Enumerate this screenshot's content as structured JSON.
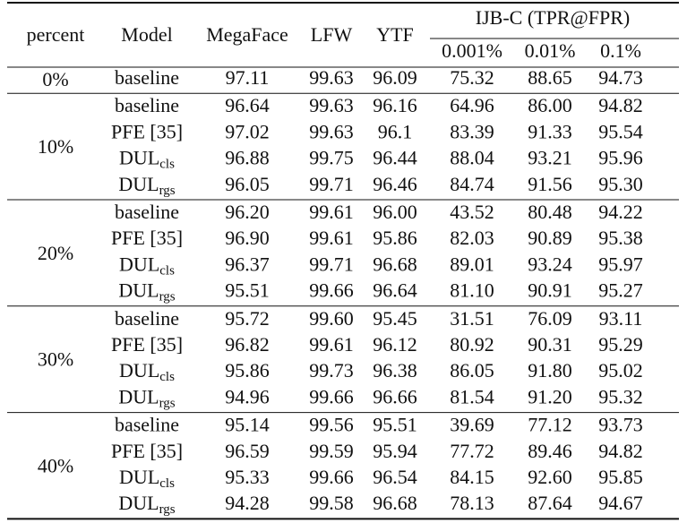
{
  "header": {
    "percent": "percent",
    "model": "Model",
    "columns": [
      "MegaFace",
      "LFW",
      "YTF"
    ],
    "ijbc": "IJB-C (TPR@FPR)",
    "fpr": [
      "0.001%",
      "0.01%",
      "0.1%"
    ]
  },
  "groups": [
    {
      "percent": "0%",
      "rows": [
        {
          "model": "baseline",
          "values": [
            "97.11",
            "99.63",
            "96.09",
            "75.32",
            "88.65",
            "94.73"
          ]
        }
      ]
    },
    {
      "percent": "10%",
      "rows": [
        {
          "model": "baseline",
          "values": [
            "96.64",
            "99.63",
            "96.16",
            "64.96",
            "86.00",
            "94.82"
          ]
        },
        {
          "model": "PFE [35]",
          "values": [
            "97.02",
            "99.63",
            "96.1",
            "83.39",
            "91.33",
            "95.54"
          ]
        },
        {
          "model": {
            "text": "DUL",
            "sub": "cls"
          },
          "values": [
            "96.88",
            "99.75",
            "96.44",
            "88.04",
            "93.21",
            "95.96"
          ]
        },
        {
          "model": {
            "text": "DUL",
            "sub": "rgs"
          },
          "values": [
            "96.05",
            "99.71",
            "96.46",
            "84.74",
            "91.56",
            "95.30"
          ]
        }
      ]
    },
    {
      "percent": "20%",
      "rows": [
        {
          "model": "baseline",
          "values": [
            "96.20",
            "99.61",
            "96.00",
            "43.52",
            "80.48",
            "94.22"
          ]
        },
        {
          "model": "PFE [35]",
          "values": [
            "96.90",
            "99.61",
            "95.86",
            "82.03",
            "90.89",
            "95.38"
          ]
        },
        {
          "model": {
            "text": "DUL",
            "sub": "cls"
          },
          "values": [
            "96.37",
            "99.71",
            "96.68",
            "89.01",
            "93.24",
            "95.97"
          ]
        },
        {
          "model": {
            "text": "DUL",
            "sub": "rgs"
          },
          "values": [
            "95.51",
            "99.66",
            "96.64",
            "81.10",
            "90.91",
            "95.27"
          ]
        }
      ]
    },
    {
      "percent": "30%",
      "rows": [
        {
          "model": "baseline",
          "values": [
            "95.72",
            "99.60",
            "95.45",
            "31.51",
            "76.09",
            "93.11"
          ]
        },
        {
          "model": "PFE [35]",
          "values": [
            "96.82",
            "99.61",
            "96.12",
            "80.92",
            "90.31",
            "95.29"
          ]
        },
        {
          "model": {
            "text": "DUL",
            "sub": "cls"
          },
          "values": [
            "95.86",
            "99.73",
            "96.38",
            "86.05",
            "91.80",
            "95.02"
          ]
        },
        {
          "model": {
            "text": "DUL",
            "sub": "rgs"
          },
          "values": [
            "94.96",
            "99.66",
            "96.66",
            "81.54",
            "91.20",
            "95.32"
          ]
        }
      ]
    },
    {
      "percent": "40%",
      "rows": [
        {
          "model": "baseline",
          "values": [
            "95.14",
            "99.56",
            "95.51",
            "39.69",
            "77.12",
            "93.73"
          ]
        },
        {
          "model": "PFE [35]",
          "values": [
            "96.59",
            "99.59",
            "95.94",
            "77.72",
            "89.46",
            "94.82"
          ]
        },
        {
          "model": {
            "text": "DUL",
            "sub": "cls"
          },
          "values": [
            "95.33",
            "99.66",
            "96.54",
            "84.15",
            "92.60",
            "95.85"
          ]
        },
        {
          "model": {
            "text": "DUL",
            "sub": "rgs"
          },
          "values": [
            "94.28",
            "99.58",
            "96.68",
            "78.13",
            "87.64",
            "94.67"
          ]
        }
      ]
    }
  ]
}
